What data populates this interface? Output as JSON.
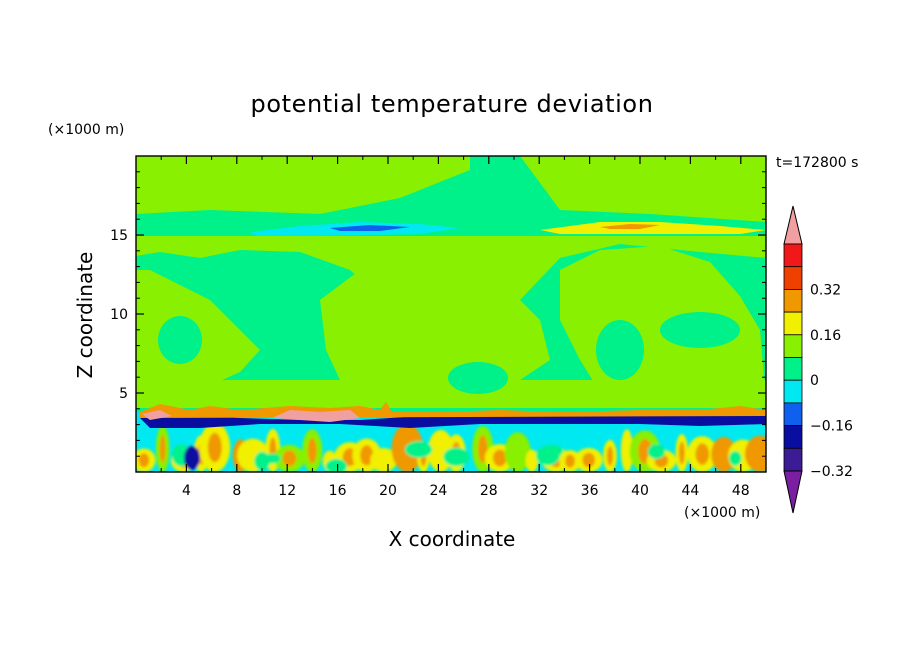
{
  "chart_data": {
    "type": "heatmap",
    "title": "potential temperature deviation",
    "xlabel": "X coordinate",
    "ylabel": "Z coordinate",
    "x_unit": "(×1000 m)",
    "y_unit": "(×1000 m)",
    "time_label": "t=172800 s",
    "x_ticks": [
      "4",
      "8",
      "12",
      "16",
      "20",
      "24",
      "28",
      "32",
      "36",
      "40",
      "44",
      "48"
    ],
    "y_ticks": [
      "5",
      "10",
      "15"
    ],
    "xlim": [
      0,
      50
    ],
    "ylim": [
      0,
      20
    ],
    "colorbar": {
      "labels": [
        "0.32",
        "0.16",
        "0",
        "−0.16",
        "−0.32"
      ],
      "levels": [
        -0.48,
        -0.4,
        -0.32,
        -0.24,
        -0.16,
        -0.08,
        0,
        0.08,
        0.16,
        0.24,
        0.32,
        0.4,
        0.48
      ],
      "colors": [
        "#7a1fa2",
        "#3b1c95",
        "#0a0ea0",
        "#1060f0",
        "#00e8f0",
        "#00f08a",
        "#88f000",
        "#f0f000",
        "#f09800",
        "#f04000",
        "#f01818",
        "#f0a0a0"
      ]
    }
  }
}
